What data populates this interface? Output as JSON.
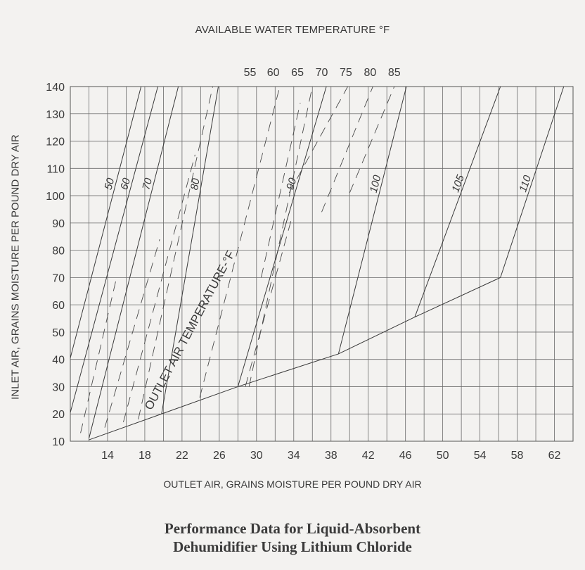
{
  "chart_data": {
    "type": "line",
    "title": "AVAILABLE WATER TEMPERATURE °F",
    "xlabel": "OUTLET AIR, GRAINS MOISTURE PER POUND DRY AIR",
    "ylabel": "INLET AIR, GRAINS MOISTURE PER POUND DRY AIR",
    "caption_lines": [
      "Performance Data for Liquid-Absorbent",
      "Dehumidifier Using Lithium Chloride"
    ],
    "xlim": [
      10,
      64
    ],
    "ylim": [
      10,
      140
    ],
    "x_ticks": [
      14,
      18,
      22,
      26,
      30,
      34,
      38,
      42,
      46,
      50,
      54,
      58,
      62
    ],
    "y_ticks": [
      10,
      20,
      30,
      40,
      50,
      60,
      70,
      80,
      90,
      100,
      110,
      120,
      130,
      140
    ],
    "grid": true,
    "water_temperature_labels": [
      {
        "text": "55",
        "x": 29.3
      },
      {
        "text": "60",
        "x": 31.8
      },
      {
        "text": "65",
        "x": 34.4
      },
      {
        "text": "70",
        "x": 37.0
      },
      {
        "text": "75",
        "x": 39.6
      },
      {
        "text": "80",
        "x": 42.2
      },
      {
        "text": "85",
        "x": 44.8
      }
    ],
    "outlet_temperature_title": "OUTLET AIR TEMPERATURE-°F",
    "outlet_temperature_lines": [
      {
        "label": "50",
        "points": [
          [
            10,
            40.5
          ],
          [
            17.6,
            140
          ]
        ]
      },
      {
        "label": "60",
        "points": [
          [
            10,
            20.5
          ],
          [
            19.4,
            140
          ]
        ]
      },
      {
        "label": "70",
        "points": [
          [
            12,
            11
          ],
          [
            21.6,
            140
          ]
        ]
      },
      {
        "label": "80",
        "points": [
          [
            19.8,
            20
          ],
          [
            25.9,
            140
          ]
        ]
      },
      {
        "label": "90",
        "points": [
          [
            28.0,
            30
          ],
          [
            37.5,
            140
          ]
        ]
      },
      {
        "label": "100",
        "points": [
          [
            38.8,
            42
          ],
          [
            46.1,
            140
          ]
        ]
      },
      {
        "label": "105",
        "points": [
          [
            47.0,
            55.5
          ],
          [
            56.2,
            140
          ]
        ]
      },
      {
        "label": "110",
        "points": [
          [
            56.2,
            70
          ],
          [
            63.0,
            140
          ]
        ]
      }
    ],
    "water_temperature_lines_dashed": [
      [
        [
          11.1,
          13
        ],
        [
          14.9,
          69
        ]
      ],
      [
        [
          13.7,
          15
        ],
        [
          19.6,
          84
        ]
      ],
      [
        [
          15.7,
          17
        ],
        [
          23.4,
          115
        ]
      ],
      [
        [
          17.3,
          18
        ],
        [
          25.3,
          140
        ]
      ],
      [
        [
          23.9,
          26
        ],
        [
          32.5,
          140
        ]
      ],
      [
        [
          28.8,
          30
        ],
        [
          33.8,
          92
        ]
      ],
      [
        [
          29.2,
          30
        ],
        [
          36.0,
          140
        ]
      ],
      [
        [
          30.5,
          70
        ],
        [
          34.7,
          134
        ]
      ],
      [
        [
          33.5,
          101
        ],
        [
          39.8,
          140
        ]
      ],
      [
        [
          37.0,
          94
        ],
        [
          42.5,
          140
        ]
      ],
      [
        [
          40.0,
          101
        ],
        [
          44.8,
          140
        ]
      ]
    ],
    "minimum_outlet_boundary": [
      [
        12,
        10.5
      ],
      [
        19.8,
        20
      ],
      [
        28.0,
        30
      ],
      [
        38.8,
        42
      ],
      [
        47.0,
        55.5
      ],
      [
        56.2,
        70
      ]
    ]
  }
}
